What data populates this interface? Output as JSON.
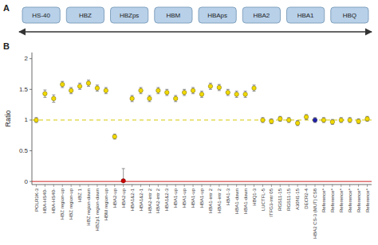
{
  "chart_data": [
    {
      "type": "gene_map",
      "title": "A",
      "categories": [
        "HS-40",
        "HBZ",
        "HBZps",
        "HBM",
        "HBAps",
        "HBA2",
        "HBA1",
        "HBQ"
      ],
      "color": "#b8d0e8"
    },
    {
      "type": "scatter",
      "title": "B",
      "ylabel": "Ratio",
      "categories": [
        "POLR3K-3",
        "HBA-HS40-",
        "HBA-HS40-",
        "HBZ region-up",
        "HBZ region-up",
        "HBZ 1",
        "HBZ region-down",
        "HBZp1 region-down",
        "HBM region-up",
        "HBA2-up",
        "HBA2-up",
        "HBA1&2-1",
        "HBA1&2-1",
        "HBA2-intr 2",
        "HBA2-intr 2",
        "HBA1&2-3",
        "HBA1-up",
        "HBA1-up",
        "HBA1-up",
        "HBA1-up",
        "HBA1-intr 2",
        "HBA1-intr 2",
        "HBA1-3",
        "HBA1-down",
        "HBA1-down",
        "HBQ1-3",
        "LUCTFL-5",
        "ITFG3-intr 05",
        "RGS11-15",
        "RGS11-15",
        "A30N1-15",
        "DECR2-4",
        "HBA2 CS-3 (MUT) CS8",
        "Reference*",
        "Reference*",
        "Reference*",
        "Reference*",
        "Reference*",
        "Reference*"
      ],
      "values": [
        1.0,
        1.43,
        1.35,
        1.58,
        1.48,
        1.55,
        1.6,
        1.52,
        1.48,
        0.73,
        0.01,
        1.35,
        1.48,
        1.35,
        1.48,
        1.45,
        1.35,
        1.45,
        1.48,
        1.42,
        1.55,
        1.53,
        1.45,
        1.42,
        1.42,
        1.52,
        1.0,
        0.98,
        1.02,
        1.0,
        0.95,
        1.05,
        1.0,
        1.0,
        0.97,
        1.0,
        1.0,
        0.98,
        1.02
      ],
      "error_minus": [
        0.04,
        0.06,
        0.06,
        0.05,
        0.05,
        0.05,
        0.05,
        0.05,
        0.05,
        0.04,
        0,
        0.05,
        0.05,
        0.05,
        0.05,
        0.05,
        0.05,
        0.05,
        0.05,
        0.05,
        0.05,
        0.05,
        0.05,
        0.05,
        0.05,
        0.05,
        0.04,
        0.04,
        0.04,
        0.04,
        0.04,
        0.04,
        0.04,
        0.04,
        0.04,
        0.04,
        0.04,
        0.04,
        0.04
      ],
      "error_plus": [
        0.04,
        0.06,
        0.06,
        0.05,
        0.05,
        0.05,
        0.05,
        0.05,
        0.05,
        0.04,
        0.2,
        0.05,
        0.05,
        0.05,
        0.05,
        0.05,
        0.05,
        0.05,
        0.05,
        0.05,
        0.05,
        0.05,
        0.05,
        0.05,
        0.05,
        0.05,
        0.04,
        0.04,
        0.04,
        0.04,
        0.04,
        0.04,
        0.04,
        0.04,
        0.04,
        0.04,
        0.04,
        0.04,
        0.04
      ],
      "colors": [
        "#f0d800",
        "#f0d800",
        "#f0d800",
        "#f0d800",
        "#f0d800",
        "#f0d800",
        "#f0d800",
        "#f0d800",
        "#f0d800",
        "#f0d800",
        "#cc0000",
        "#f0d800",
        "#f0d800",
        "#f0d800",
        "#f0d800",
        "#f0d800",
        "#f0d800",
        "#f0d800",
        "#f0d800",
        "#f0d800",
        "#f0d800",
        "#f0d800",
        "#f0d800",
        "#f0d800",
        "#f0d800",
        "#f0d800",
        "#f0d800",
        "#f0d800",
        "#f0d800",
        "#f0d800",
        "#f0d800",
        "#f0d800",
        "#2222aa",
        "#f0d800",
        "#f0d800",
        "#f0d800",
        "#f0d800",
        "#f0d800",
        "#f0d800"
      ],
      "reference_lines": [
        {
          "y": 0.0,
          "color": "#cc2222",
          "line_style": "solid"
        },
        {
          "y": 1.0,
          "color": "#d4c800",
          "line_style": "dashed"
        }
      ],
      "ylim": [
        -0.05,
        2.1
      ],
      "yticks": [
        0,
        0.5,
        1,
        1.5,
        2
      ],
      "grid": false
    }
  ]
}
